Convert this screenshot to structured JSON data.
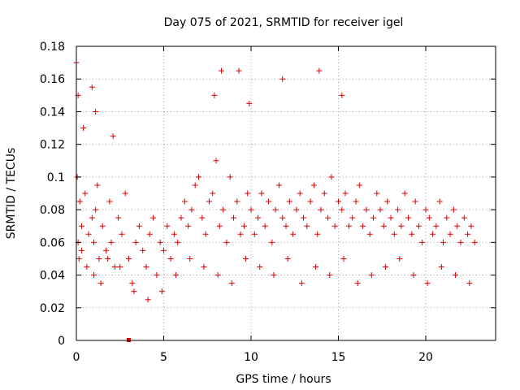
{
  "chart_data": {
    "type": "scatter",
    "title": "Day 075 of 2021, SRMTID for receiver igel",
    "xlabel": "GPS time / hours",
    "ylabel": "SRMTID / TECUs",
    "xlim": [
      0,
      24
    ],
    "ylim": [
      0,
      0.18
    ],
    "x_ticks": [
      0,
      5,
      10,
      15,
      20
    ],
    "x_tick_labels": [
      "0",
      "5",
      "10",
      "15",
      "20"
    ],
    "y_ticks": [
      0,
      0.02,
      0.04,
      0.06,
      0.08,
      0.1,
      0.12,
      0.14,
      0.16,
      0.18
    ],
    "y_tick_labels": [
      "0",
      "0.02",
      "0.04",
      "0.06",
      "0.08",
      "0.1",
      "0.12",
      "0.14",
      "0.16",
      "0.18"
    ],
    "grid": true,
    "marker": "+",
    "color": "#e00000",
    "series": [
      {
        "name": "SRMTID",
        "x": [
          0.05,
          0.1,
          0.15,
          0.2,
          0.3,
          0.5,
          0.7,
          0.9,
          1.0,
          1.1,
          1.2,
          1.3,
          1.5,
          1.7,
          1.9,
          2.0,
          2.2,
          2.4,
          2.6,
          2.8,
          3.0,
          3.2,
          3.4,
          3.6,
          3.8,
          4.0,
          4.2,
          4.4,
          4.6,
          4.8,
          5.0,
          5.2,
          5.4,
          5.6,
          5.8,
          6.0,
          6.2,
          6.4,
          6.6,
          6.8,
          7.0,
          7.2,
          7.4,
          7.6,
          7.8,
          8.0,
          8.2,
          8.4,
          8.6,
          8.8,
          9.0,
          9.2,
          9.4,
          9.6,
          9.8,
          10.0,
          10.2,
          10.4,
          10.6,
          10.8,
          11.0,
          11.2,
          11.4,
          11.6,
          11.8,
          12.0,
          12.2,
          12.4,
          12.6,
          12.8,
          13.0,
          13.2,
          13.4,
          13.6,
          13.8,
          14.0,
          14.2,
          14.4,
          14.6,
          14.8,
          15.0,
          15.2,
          15.4,
          15.6,
          15.8,
          16.0,
          16.2,
          16.4,
          16.6,
          16.8,
          17.0,
          17.2,
          17.4,
          17.6,
          17.8,
          18.0,
          18.2,
          18.4,
          18.6,
          18.8,
          19.0,
          19.2,
          19.4,
          19.6,
          19.8,
          20.0,
          20.2,
          20.4,
          20.6,
          20.8,
          21.0,
          21.2,
          21.4,
          21.6,
          21.8,
          22.0,
          22.2,
          22.4,
          22.6,
          22.8,
          0.3,
          0.6,
          1.0,
          1.4,
          1.8,
          2.5,
          3.3,
          4.1,
          4.9,
          5.7,
          6.5,
          7.3,
          8.1,
          8.9,
          9.7,
          10.5,
          11.3,
          12.1,
          12.9,
          13.7,
          14.5,
          15.3,
          16.1,
          16.9,
          17.7,
          18.5,
          19.3,
          20.1,
          20.9,
          21.7,
          22.5,
          0.0,
          0.1,
          0.4,
          0.9,
          1.1,
          2.1,
          7.9,
          8.3,
          9.3,
          9.9,
          11.8,
          13.9,
          15.2
        ],
        "y": [
          0.1,
          0.06,
          0.05,
          0.085,
          0.07,
          0.09,
          0.065,
          0.075,
          0.06,
          0.08,
          0.095,
          0.05,
          0.07,
          0.055,
          0.085,
          0.06,
          0.045,
          0.075,
          0.065,
          0.09,
          0.05,
          0.035,
          0.06,
          0.07,
          0.055,
          0.045,
          0.065,
          0.075,
          0.04,
          0.06,
          0.055,
          0.07,
          0.05,
          0.065,
          0.06,
          0.075,
          0.085,
          0.07,
          0.08,
          0.095,
          0.1,
          0.075,
          0.065,
          0.085,
          0.09,
          0.11,
          0.07,
          0.08,
          0.06,
          0.1,
          0.075,
          0.085,
          0.065,
          0.07,
          0.09,
          0.08,
          0.065,
          0.075,
          0.09,
          0.07,
          0.085,
          0.06,
          0.08,
          0.095,
          0.075,
          0.07,
          0.085,
          0.065,
          0.08,
          0.09,
          0.075,
          0.07,
          0.085,
          0.095,
          0.065,
          0.08,
          0.09,
          0.075,
          0.1,
          0.07,
          0.085,
          0.08,
          0.09,
          0.07,
          0.075,
          0.085,
          0.095,
          0.07,
          0.08,
          0.065,
          0.075,
          0.09,
          0.08,
          0.07,
          0.085,
          0.075,
          0.065,
          0.08,
          0.07,
          0.09,
          0.075,
          0.065,
          0.085,
          0.07,
          0.06,
          0.08,
          0.075,
          0.065,
          0.07,
          0.085,
          0.06,
          0.075,
          0.065,
          0.08,
          0.07,
          0.06,
          0.075,
          0.065,
          0.07,
          0.06,
          0.055,
          0.045,
          0.04,
          0.035,
          0.05,
          0.045,
          0.03,
          0.025,
          0.03,
          0.04,
          0.05,
          0.045,
          0.04,
          0.035,
          0.05,
          0.045,
          0.04,
          0.05,
          0.035,
          0.045,
          0.04,
          0.05,
          0.035,
          0.04,
          0.045,
          0.05,
          0.04,
          0.035,
          0.045,
          0.04,
          0.035,
          0.17,
          0.15,
          0.13,
          0.155,
          0.14,
          0.125,
          0.15,
          0.165,
          0.165,
          0.145,
          0.16,
          0.165,
          0.15
        ]
      }
    ],
    "extra_marks": [
      {
        "x": 3.0,
        "y": 0.0,
        "shape": "square"
      }
    ]
  }
}
